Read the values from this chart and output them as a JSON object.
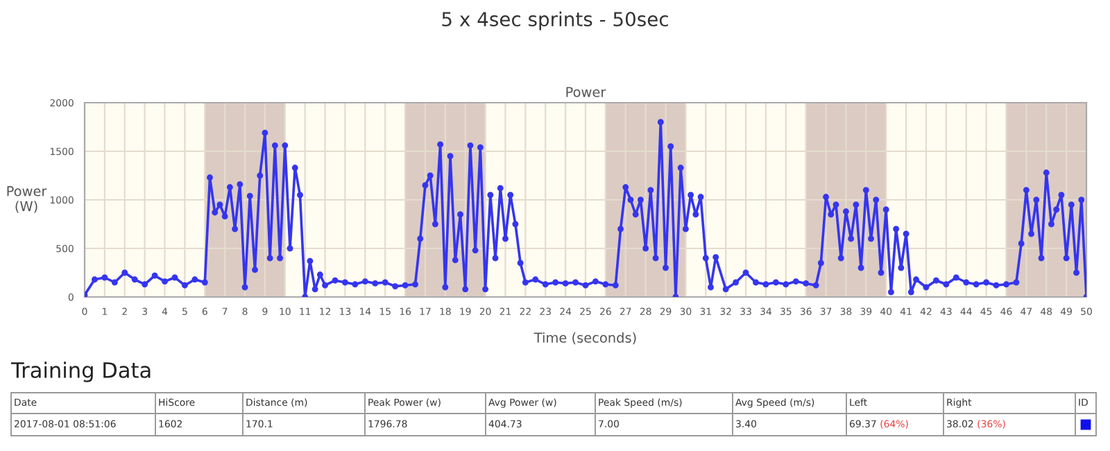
{
  "chart_data": [
    {
      "type": "line",
      "title": "5 x 4sec sprints - 50sec",
      "subtitle": "Power",
      "xlabel": "Time (seconds)",
      "ylabel": "Power\n(W)",
      "xlim": [
        0,
        50
      ],
      "ylim": [
        0,
        2000
      ],
      "xticks": [
        0,
        1,
        2,
        3,
        4,
        5,
        6,
        7,
        8,
        9,
        10,
        11,
        12,
        13,
        14,
        15,
        16,
        17,
        18,
        19,
        20,
        21,
        22,
        23,
        24,
        25,
        26,
        27,
        28,
        29,
        30,
        31,
        32,
        33,
        34,
        35,
        36,
        37,
        38,
        39,
        40,
        41,
        42,
        43,
        44,
        45,
        46,
        47,
        48,
        49,
        50
      ],
      "yticks": [
        0,
        500,
        1000,
        1500,
        2000
      ],
      "grid": true,
      "marker": "circle",
      "line_style": "solid",
      "legend": false,
      "bands": [
        {
          "axis": "x",
          "from": 6,
          "to": 10,
          "color": "#dccbc3"
        },
        {
          "axis": "x",
          "from": 16,
          "to": 20,
          "color": "#dccbc3"
        },
        {
          "axis": "x",
          "from": 26,
          "to": 30,
          "color": "#dccbc3"
        },
        {
          "axis": "x",
          "from": 36,
          "to": 40,
          "color": "#dccbc3"
        },
        {
          "axis": "x",
          "from": 46,
          "to": 50,
          "color": "#dccbc3"
        }
      ],
      "series": [
        {
          "color": "#3535ee",
          "x": [
            0,
            0.5,
            1,
            1.5,
            2,
            2.5,
            3,
            3.5,
            4,
            4.5,
            5,
            5.5,
            6,
            6.25,
            6.5,
            6.75,
            7,
            7.25,
            7.5,
            7.75,
            8,
            8.25,
            8.5,
            8.75,
            9,
            9.25,
            9.5,
            9.75,
            10,
            10.25,
            10.5,
            10.75,
            11,
            11.25,
            11.5,
            11.75,
            12,
            12.5,
            13,
            13.5,
            14,
            14.5,
            15,
            15.5,
            16,
            16.5,
            16.75,
            17,
            17.25,
            17.5,
            17.75,
            18,
            18.25,
            18.5,
            18.75,
            19,
            19.25,
            19.5,
            19.75,
            20,
            20.25,
            20.5,
            20.75,
            21,
            21.25,
            21.5,
            21.75,
            22,
            22.5,
            23,
            23.5,
            24,
            24.5,
            25,
            25.5,
            26,
            26.5,
            26.75,
            27,
            27.25,
            27.5,
            27.75,
            28,
            28.25,
            28.5,
            28.75,
            29,
            29.25,
            29.5,
            29.75,
            30,
            30.25,
            30.5,
            30.75,
            31,
            31.25,
            31.5,
            32,
            32.5,
            33,
            33.5,
            34,
            34.5,
            35,
            35.5,
            36,
            36.5,
            36.75,
            37,
            37.25,
            37.5,
            37.75,
            38,
            38.25,
            38.5,
            38.75,
            39,
            39.25,
            39.5,
            39.75,
            40,
            40.25,
            40.5,
            40.75,
            41,
            41.25,
            41.5,
            42,
            42.5,
            43,
            43.5,
            44,
            44.5,
            45,
            45.5,
            46,
            46.5,
            46.75,
            47,
            47.25,
            47.5,
            47.75,
            48,
            48.25,
            48.5,
            48.75,
            49,
            49.25,
            49.5,
            49.75,
            50
          ],
          "values": [
            20,
            180,
            200,
            150,
            250,
            180,
            130,
            220,
            160,
            200,
            120,
            180,
            150,
            1230,
            870,
            950,
            830,
            1130,
            700,
            1160,
            100,
            1040,
            280,
            1250,
            1690,
            400,
            1560,
            400,
            1560,
            500,
            1330,
            1050,
            0,
            370,
            80,
            230,
            120,
            170,
            150,
            130,
            160,
            140,
            150,
            110,
            120,
            130,
            600,
            1150,
            1250,
            750,
            1570,
            100,
            1450,
            380,
            850,
            80,
            1560,
            480,
            1540,
            80,
            1050,
            400,
            1120,
            600,
            1050,
            750,
            350,
            150,
            180,
            130,
            150,
            140,
            150,
            120,
            160,
            130,
            120,
            700,
            1130,
            1000,
            850,
            1000,
            500,
            1100,
            400,
            1800,
            300,
            1550,
            0,
            1330,
            700,
            1050,
            850,
            1030,
            400,
            100,
            410,
            80,
            150,
            250,
            150,
            130,
            150,
            130,
            160,
            140,
            120,
            350,
            1030,
            850,
            950,
            400,
            880,
            600,
            950,
            300,
            1100,
            600,
            1000,
            250,
            900,
            50,
            700,
            300,
            650,
            50,
            180,
            100,
            170,
            130,
            200,
            150,
            130,
            150,
            120,
            130,
            150,
            550,
            1100,
            650,
            1000,
            400,
            1280,
            750,
            900,
            1050,
            400,
            950,
            250,
            1000,
            0
          ]
        }
      ]
    },
    {
      "type": "other",
      "title": "Training Data",
      "annotations": [
        "Date",
        "HiScore",
        "Distance (m)",
        "Peak Power (w)",
        "Avg Power (w)",
        "Peak Speed (m/s)",
        "Avg Speed (m/s)",
        "Left",
        "Right",
        "ID",
        "2017-08-01 08:51:06",
        "1602",
        "170.1",
        "1796.78",
        "404.73",
        "7.00",
        "3.40",
        "69.37",
        "(64%)",
        "38.02",
        "(36%)"
      ]
    }
  ]
}
